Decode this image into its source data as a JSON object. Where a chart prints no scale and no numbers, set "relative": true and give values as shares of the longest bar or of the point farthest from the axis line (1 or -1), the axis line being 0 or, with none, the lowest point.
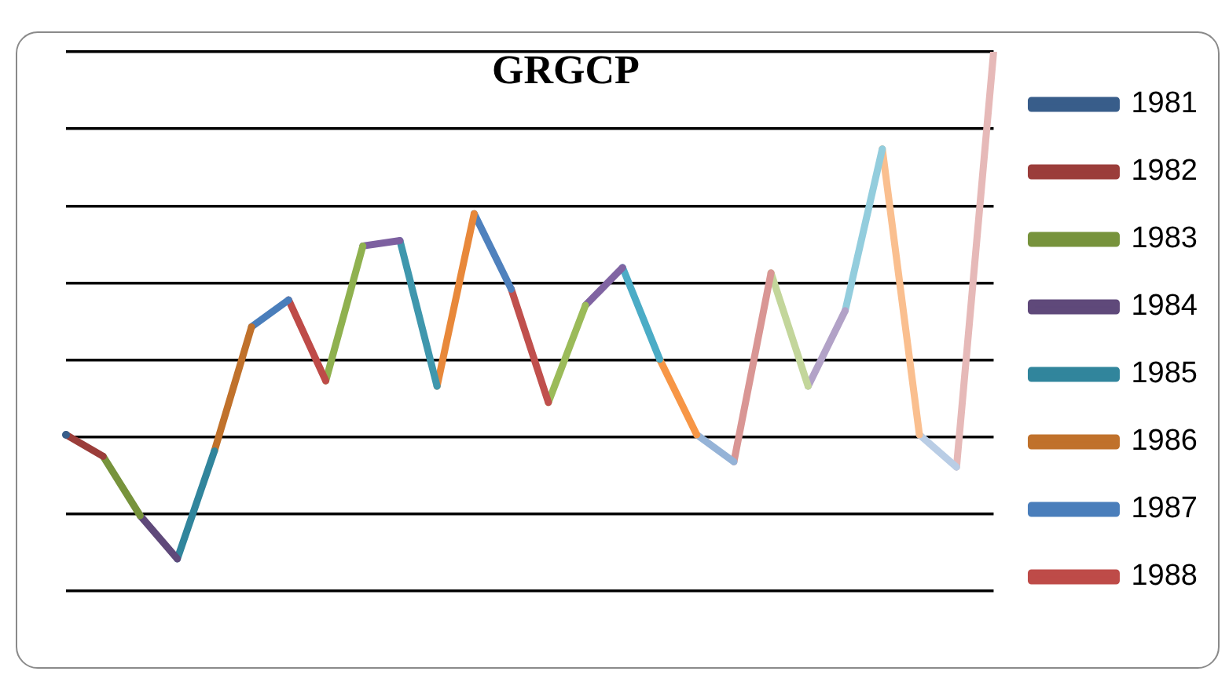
{
  "chart_data": {
    "type": "line",
    "title": "GRGCP",
    "relative": true,
    "grid": "y",
    "legend": "right",
    "categories": [
      null,
      null,
      null,
      null,
      null,
      null,
      null,
      null,
      null,
      null,
      null,
      null,
      null,
      null,
      null,
      null,
      null,
      null,
      null,
      null,
      null,
      null,
      null,
      null,
      null,
      null
    ],
    "series": [
      {
        "name": "1981",
        "color": "#385d8a",
        "marker": "circle",
        "values": [
          0.29,
          null,
          null,
          null,
          null,
          null,
          null,
          null,
          null,
          null,
          null,
          null,
          null,
          null,
          null,
          null,
          null,
          null,
          null,
          null,
          null,
          null,
          null,
          null,
          null,
          null
        ]
      },
      {
        "name": "1982",
        "color": "#9b3d3a",
        "values": [
          0.29,
          0.25,
          null,
          null,
          null,
          null,
          null,
          null,
          null,
          null,
          null,
          null,
          null,
          null,
          null,
          null,
          null,
          null,
          null,
          null,
          null,
          null,
          null,
          null,
          null,
          null
        ]
      },
      {
        "name": "1983",
        "color": "#77933c",
        "values": [
          null,
          0.25,
          0.14,
          null,
          null,
          null,
          null,
          null,
          null,
          null,
          null,
          null,
          null,
          null,
          null,
          null,
          null,
          null,
          null,
          null,
          null,
          null,
          null,
          null,
          null,
          null
        ]
      },
      {
        "name": "1984",
        "color": "#5f497a",
        "values": [
          null,
          null,
          0.14,
          0.06,
          null,
          null,
          null,
          null,
          null,
          null,
          null,
          null,
          null,
          null,
          null,
          null,
          null,
          null,
          null,
          null,
          null,
          null,
          null,
          null,
          null,
          null
        ]
      },
      {
        "name": "1985",
        "color": "#31859c",
        "values": [
          null,
          null,
          null,
          0.06,
          0.26,
          null,
          null,
          null,
          null,
          null,
          null,
          null,
          null,
          null,
          null,
          null,
          null,
          null,
          null,
          null,
          null,
          null,
          null,
          null,
          null,
          null
        ]
      },
      {
        "name": "1986",
        "color": "#c0712b",
        "values": [
          null,
          null,
          null,
          null,
          0.26,
          0.49,
          null,
          null,
          null,
          null,
          null,
          null,
          null,
          null,
          null,
          null,
          null,
          null,
          null,
          null,
          null,
          null,
          null,
          null,
          null,
          null
        ]
      },
      {
        "name": "1987",
        "color": "#4a7ebb",
        "values": [
          null,
          null,
          null,
          null,
          null,
          0.49,
          0.54,
          null,
          null,
          null,
          null,
          null,
          null,
          null,
          null,
          null,
          null,
          null,
          null,
          null,
          null,
          null,
          null,
          null,
          null,
          null
        ]
      },
      {
        "name": "1988",
        "color": "#be4b48",
        "values": [
          null,
          null,
          null,
          null,
          null,
          null,
          0.54,
          0.39,
          null,
          null,
          null,
          null,
          null,
          null,
          null,
          null,
          null,
          null,
          null,
          null,
          null,
          null,
          null,
          null,
          null,
          null
        ]
      },
      {
        "color": "#8fb14f",
        "values": [
          null,
          null,
          null,
          null,
          null,
          null,
          null,
          0.39,
          0.64,
          null,
          null,
          null,
          null,
          null,
          null,
          null,
          null,
          null,
          null,
          null,
          null,
          null,
          null,
          null,
          null,
          null
        ]
      },
      {
        "color": "#7d60a0",
        "values": [
          null,
          null,
          null,
          null,
          null,
          null,
          null,
          null,
          0.64,
          0.65,
          null,
          null,
          null,
          null,
          null,
          null,
          null,
          null,
          null,
          null,
          null,
          null,
          null,
          null,
          null,
          null
        ]
      },
      {
        "color": "#3f97ad",
        "values": [
          null,
          null,
          null,
          null,
          null,
          null,
          null,
          null,
          null,
          0.65,
          0.38,
          null,
          null,
          null,
          null,
          null,
          null,
          null,
          null,
          null,
          null,
          null,
          null,
          null,
          null,
          null
        ]
      },
      {
        "color": "#e8883a",
        "values": [
          null,
          null,
          null,
          null,
          null,
          null,
          null,
          null,
          null,
          null,
          0.38,
          0.7,
          null,
          null,
          null,
          null,
          null,
          null,
          null,
          null,
          null,
          null,
          null,
          null,
          null,
          null
        ]
      },
      {
        "color": "#4f81bd",
        "values": [
          null,
          null,
          null,
          null,
          null,
          null,
          null,
          null,
          null,
          null,
          null,
          0.7,
          0.56,
          null,
          null,
          null,
          null,
          null,
          null,
          null,
          null,
          null,
          null,
          null,
          null,
          null
        ]
      },
      {
        "color": "#c0504d",
        "values": [
          null,
          null,
          null,
          null,
          null,
          null,
          null,
          null,
          null,
          null,
          null,
          null,
          0.56,
          0.35,
          null,
          null,
          null,
          null,
          null,
          null,
          null,
          null,
          null,
          null,
          null,
          null
        ]
      },
      {
        "color": "#9bbb59",
        "values": [
          null,
          null,
          null,
          null,
          null,
          null,
          null,
          null,
          null,
          null,
          null,
          null,
          null,
          0.35,
          0.53,
          null,
          null,
          null,
          null,
          null,
          null,
          null,
          null,
          null,
          null,
          null
        ]
      },
      {
        "color": "#8064a2",
        "values": [
          null,
          null,
          null,
          null,
          null,
          null,
          null,
          null,
          null,
          null,
          null,
          null,
          null,
          null,
          0.53,
          0.6,
          null,
          null,
          null,
          null,
          null,
          null,
          null,
          null,
          null,
          null
        ]
      },
      {
        "color": "#4bacc6",
        "values": [
          null,
          null,
          null,
          null,
          null,
          null,
          null,
          null,
          null,
          null,
          null,
          null,
          null,
          null,
          null,
          0.6,
          0.43,
          null,
          null,
          null,
          null,
          null,
          null,
          null,
          null,
          null
        ]
      },
      {
        "color": "#f79646",
        "values": [
          null,
          null,
          null,
          null,
          null,
          null,
          null,
          null,
          null,
          null,
          null,
          null,
          null,
          null,
          null,
          null,
          0.43,
          0.29,
          null,
          null,
          null,
          null,
          null,
          null,
          null,
          null
        ]
      },
      {
        "color": "#95b3d7",
        "values": [
          null,
          null,
          null,
          null,
          null,
          null,
          null,
          null,
          null,
          null,
          null,
          null,
          null,
          null,
          null,
          null,
          null,
          0.29,
          0.24,
          null,
          null,
          null,
          null,
          null,
          null,
          null
        ]
      },
      {
        "color": "#d99694",
        "values": [
          null,
          null,
          null,
          null,
          null,
          null,
          null,
          null,
          null,
          null,
          null,
          null,
          null,
          null,
          null,
          null,
          null,
          null,
          0.24,
          0.59,
          null,
          null,
          null,
          null,
          null,
          null
        ]
      },
      {
        "color": "#c3d69b",
        "values": [
          null,
          null,
          null,
          null,
          null,
          null,
          null,
          null,
          null,
          null,
          null,
          null,
          null,
          null,
          null,
          null,
          null,
          null,
          null,
          0.59,
          0.38,
          null,
          null,
          null,
          null,
          null
        ]
      },
      {
        "color": "#b2a2c7",
        "values": [
          null,
          null,
          null,
          null,
          null,
          null,
          null,
          null,
          null,
          null,
          null,
          null,
          null,
          null,
          null,
          null,
          null,
          null,
          null,
          null,
          0.38,
          0.52,
          null,
          null,
          null,
          null
        ]
      },
      {
        "color": "#93cddd",
        "values": [
          null,
          null,
          null,
          null,
          null,
          null,
          null,
          null,
          null,
          null,
          null,
          null,
          null,
          null,
          null,
          null,
          null,
          null,
          null,
          null,
          null,
          0.52,
          0.82,
          null,
          null,
          null
        ]
      },
      {
        "color": "#fabf8f",
        "values": [
          null,
          null,
          null,
          null,
          null,
          null,
          null,
          null,
          null,
          null,
          null,
          null,
          null,
          null,
          null,
          null,
          null,
          null,
          null,
          null,
          null,
          null,
          0.82,
          0.29,
          null,
          null
        ]
      },
      {
        "color": "#b9cde5",
        "values": [
          null,
          null,
          null,
          null,
          null,
          null,
          null,
          null,
          null,
          null,
          null,
          null,
          null,
          null,
          null,
          null,
          null,
          null,
          null,
          null,
          null,
          null,
          null,
          0.29,
          0.23,
          null
        ]
      },
      {
        "color": "#e6b9b8",
        "values": [
          null,
          null,
          null,
          null,
          null,
          null,
          null,
          null,
          null,
          null,
          null,
          null,
          null,
          null,
          null,
          null,
          null,
          null,
          null,
          null,
          null,
          null,
          null,
          null,
          0.23,
          1
        ]
      }
    ]
  }
}
